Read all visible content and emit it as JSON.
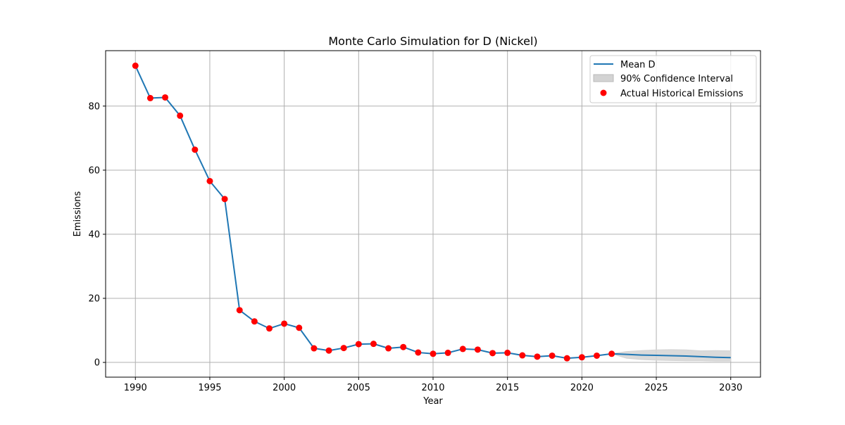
{
  "chart_data": {
    "type": "line",
    "title": "Monte Carlo Simulation for D (Nickel)",
    "xlabel": "Year",
    "ylabel": "Emissions",
    "xlim": [
      1988.0,
      2032.0
    ],
    "ylim": [
      -4.6,
      97.3
    ],
    "x_ticks": [
      1990,
      1995,
      2000,
      2005,
      2010,
      2015,
      2020,
      2025,
      2030
    ],
    "y_ticks": [
      0,
      20,
      40,
      60,
      80
    ],
    "grid": true,
    "legend_position": "top-right",
    "legend": {
      "mean_label": "Mean D",
      "ci_label": "90% Confidence Interval",
      "actual_label": "Actual Historical Emissions"
    },
    "colors": {
      "mean_line": "#1f77b4",
      "confidence_band": "#d3d3d3",
      "actual_points": "#ff0000",
      "grid": "#b0b0b0"
    },
    "series": [
      {
        "name": "Mean D",
        "x": [
          1990,
          1991,
          1992,
          1993,
          1994,
          1995,
          1996,
          1997,
          1998,
          1999,
          2000,
          2001,
          2002,
          2003,
          2004,
          2005,
          2006,
          2007,
          2008,
          2009,
          2010,
          2011,
          2012,
          2013,
          2014,
          2015,
          2016,
          2017,
          2018,
          2019,
          2020,
          2021,
          2022,
          2023,
          2024,
          2025,
          2026,
          2027,
          2028,
          2029,
          2030
        ],
        "y": [
          92.6,
          82.5,
          82.7,
          77.0,
          66.4,
          56.6,
          51.0,
          16.3,
          12.8,
          10.6,
          12.1,
          10.8,
          4.4,
          3.7,
          4.5,
          5.7,
          5.8,
          4.4,
          4.8,
          3.1,
          2.7,
          3.0,
          4.2,
          4.0,
          2.9,
          3.0,
          2.2,
          1.8,
          2.1,
          1.3,
          1.6,
          2.1,
          2.7,
          2.5,
          2.3,
          2.2,
          2.1,
          2.0,
          1.8,
          1.6,
          1.5
        ]
      },
      {
        "name": "Actual Historical Emissions",
        "x": [
          1990,
          1991,
          1992,
          1993,
          1994,
          1995,
          1996,
          1997,
          1998,
          1999,
          2000,
          2001,
          2002,
          2003,
          2004,
          2005,
          2006,
          2007,
          2008,
          2009,
          2010,
          2011,
          2012,
          2013,
          2014,
          2015,
          2016,
          2017,
          2018,
          2019,
          2020,
          2021,
          2022
        ],
        "y": [
          92.6,
          82.5,
          82.7,
          77.0,
          66.4,
          56.6,
          51.0,
          16.3,
          12.8,
          10.6,
          12.1,
          10.8,
          4.4,
          3.7,
          4.5,
          5.7,
          5.8,
          4.4,
          4.8,
          3.1,
          2.7,
          3.0,
          4.2,
          4.0,
          2.9,
          3.0,
          2.2,
          1.8,
          2.1,
          1.3,
          1.6,
          2.1,
          2.7
        ]
      }
    ],
    "confidence_interval": {
      "name": "90% Confidence Interval",
      "x": [
        2022,
        2023,
        2024,
        2025,
        2026,
        2027,
        2028,
        2029,
        2030
      ],
      "lower": [
        2.7,
        1.3,
        0.9,
        0.7,
        0.6,
        0.5,
        0.5,
        0.4,
        0.4
      ],
      "upper": [
        2.7,
        3.4,
        3.7,
        3.9,
        4.0,
        3.9,
        3.6,
        3.7,
        3.6
      ]
    }
  }
}
